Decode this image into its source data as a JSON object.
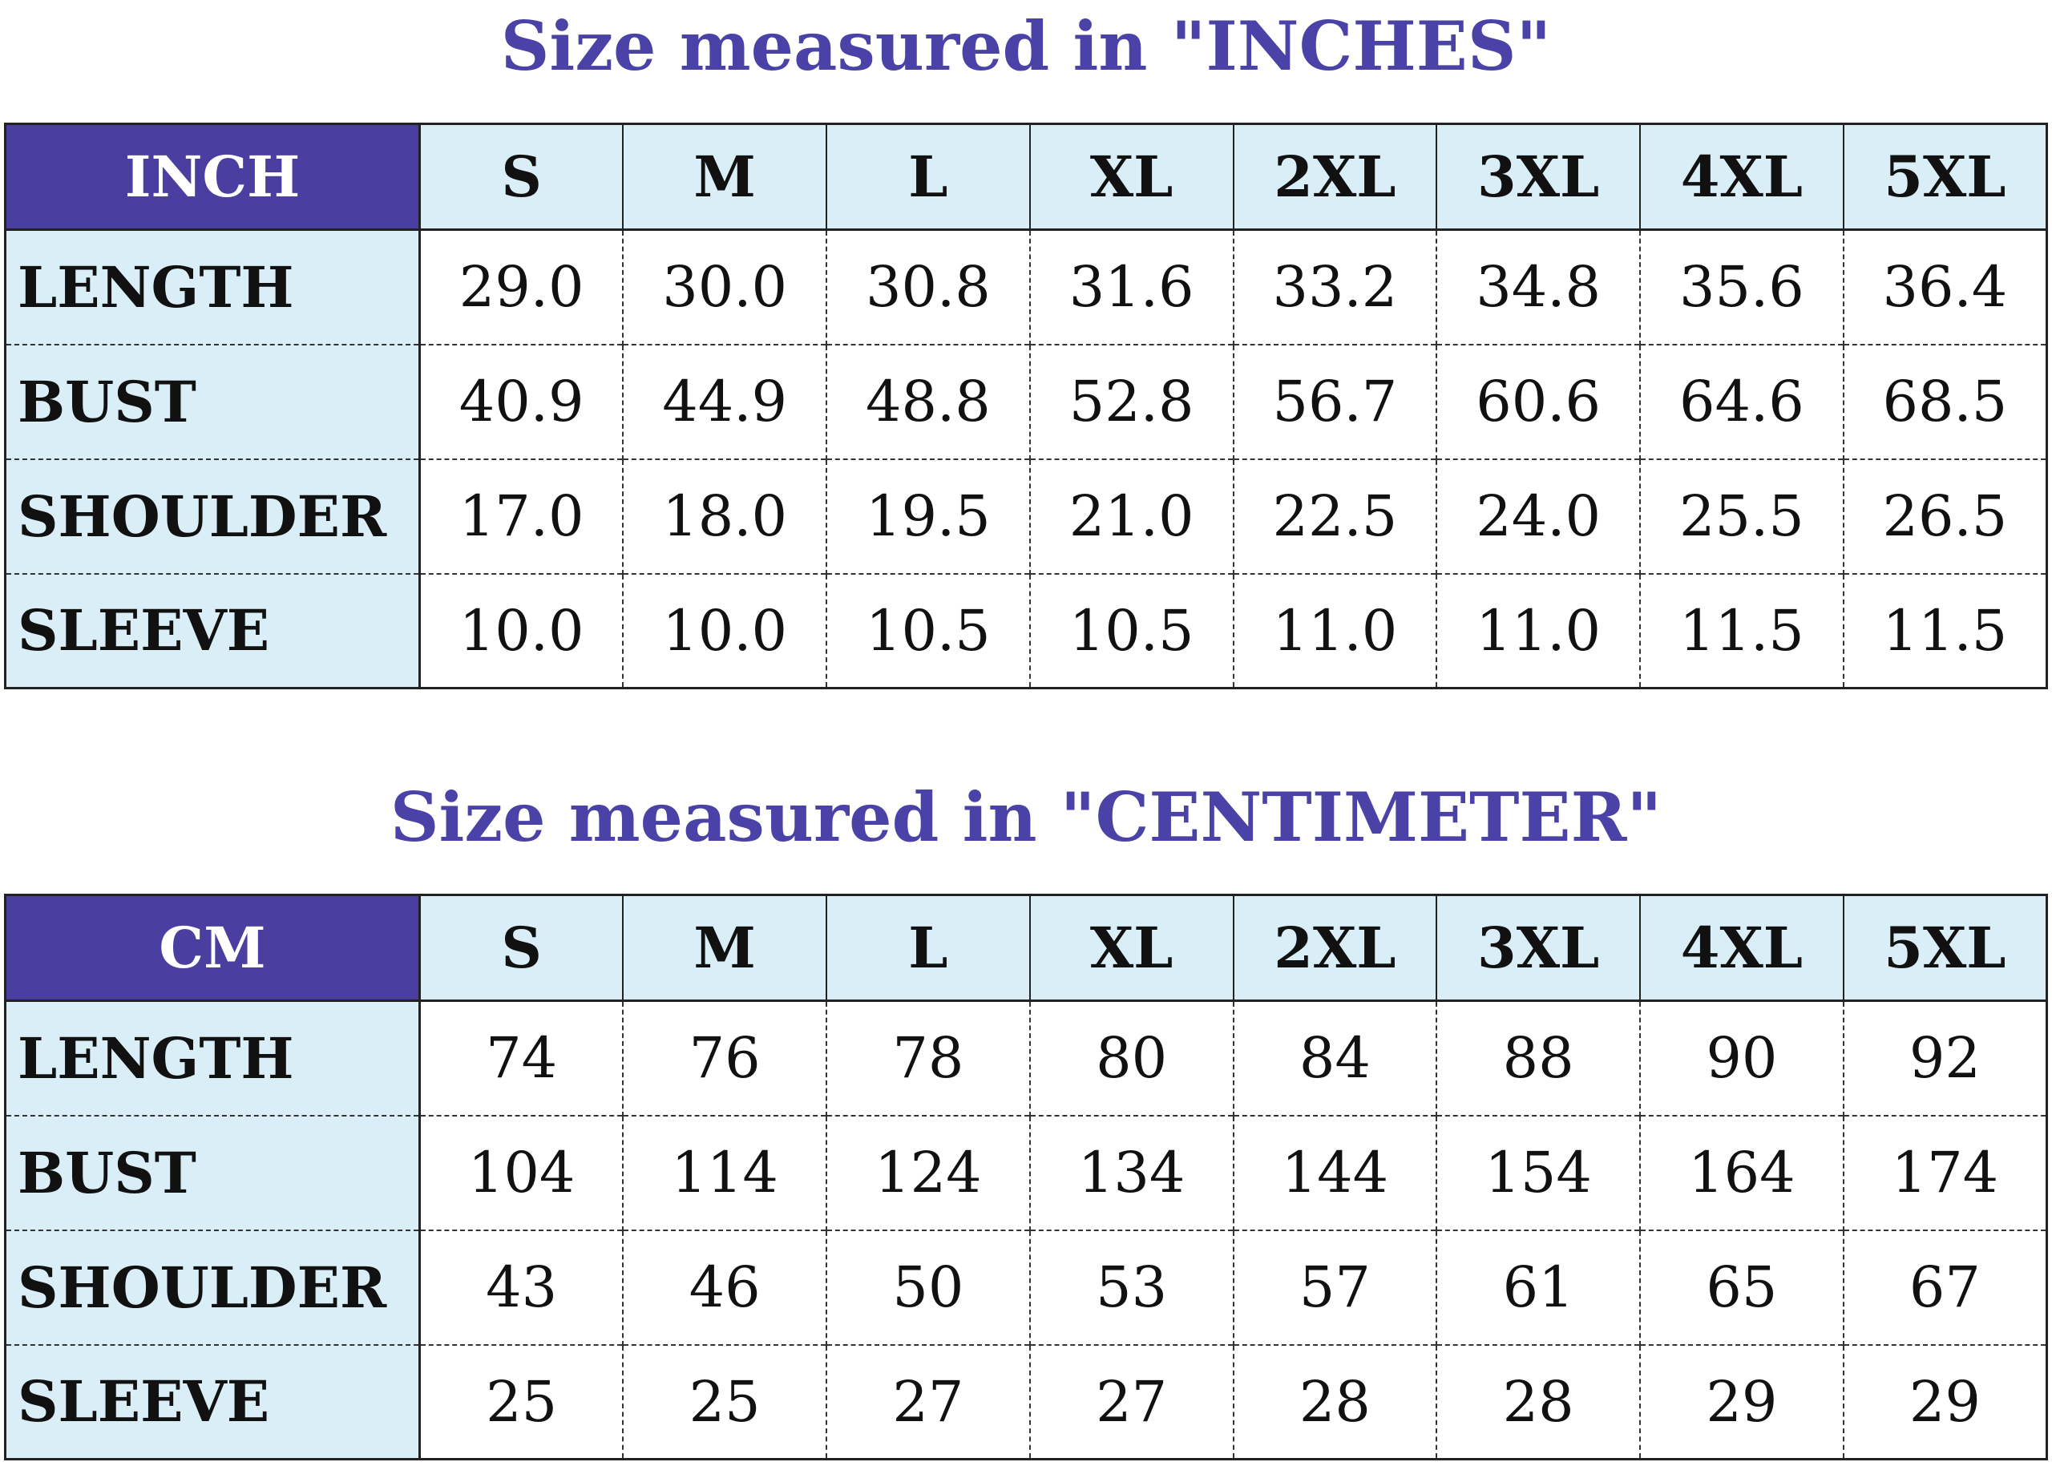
{
  "tables": [
    {
      "title": "Size measured in \"INCHES\"",
      "header": [
        "INCH",
        "S",
        "M",
        "L",
        "XL",
        "2XL",
        "3XL",
        "4XL",
        "5XL"
      ],
      "rows": [
        [
          "LENGTH",
          "29.0",
          "30.0",
          "30.8",
          "31.6",
          "33.2",
          "34.8",
          "35.6",
          "36.4"
        ],
        [
          "BUST",
          "40.9",
          "44.9",
          "48.8",
          "52.8",
          "56.7",
          "60.6",
          "64.6",
          "68.5"
        ],
        [
          "SHOULDER",
          "17.0",
          "18.0",
          "19.5",
          "21.0",
          "22.5",
          "24.0",
          "25.5",
          "26.5"
        ],
        [
          "SLEEVE",
          "10.0",
          "10.0",
          "10.5",
          "10.5",
          "11.0",
          "11.0",
          "11.5",
          "11.5"
        ]
      ]
    },
    {
      "title": "Size measured in \"CENTIMETER\"",
      "header": [
        "CM",
        "S",
        "M",
        "L",
        "XL",
        "2XL",
        "3XL",
        "4XL",
        "5XL"
      ],
      "rows": [
        [
          "LENGTH",
          "74",
          "76",
          "78",
          "80",
          "84",
          "88",
          "90",
          "92"
        ],
        [
          "BUST",
          "104",
          "114",
          "124",
          "134",
          "144",
          "154",
          "164",
          "174"
        ],
        [
          "SHOULDER",
          "43",
          "46",
          "50",
          "53",
          "57",
          "61",
          "65",
          "67"
        ],
        [
          "SLEEVE",
          "25",
          "25",
          "27",
          "27",
          "28",
          "28",
          "29",
          "29"
        ]
      ]
    }
  ]
}
